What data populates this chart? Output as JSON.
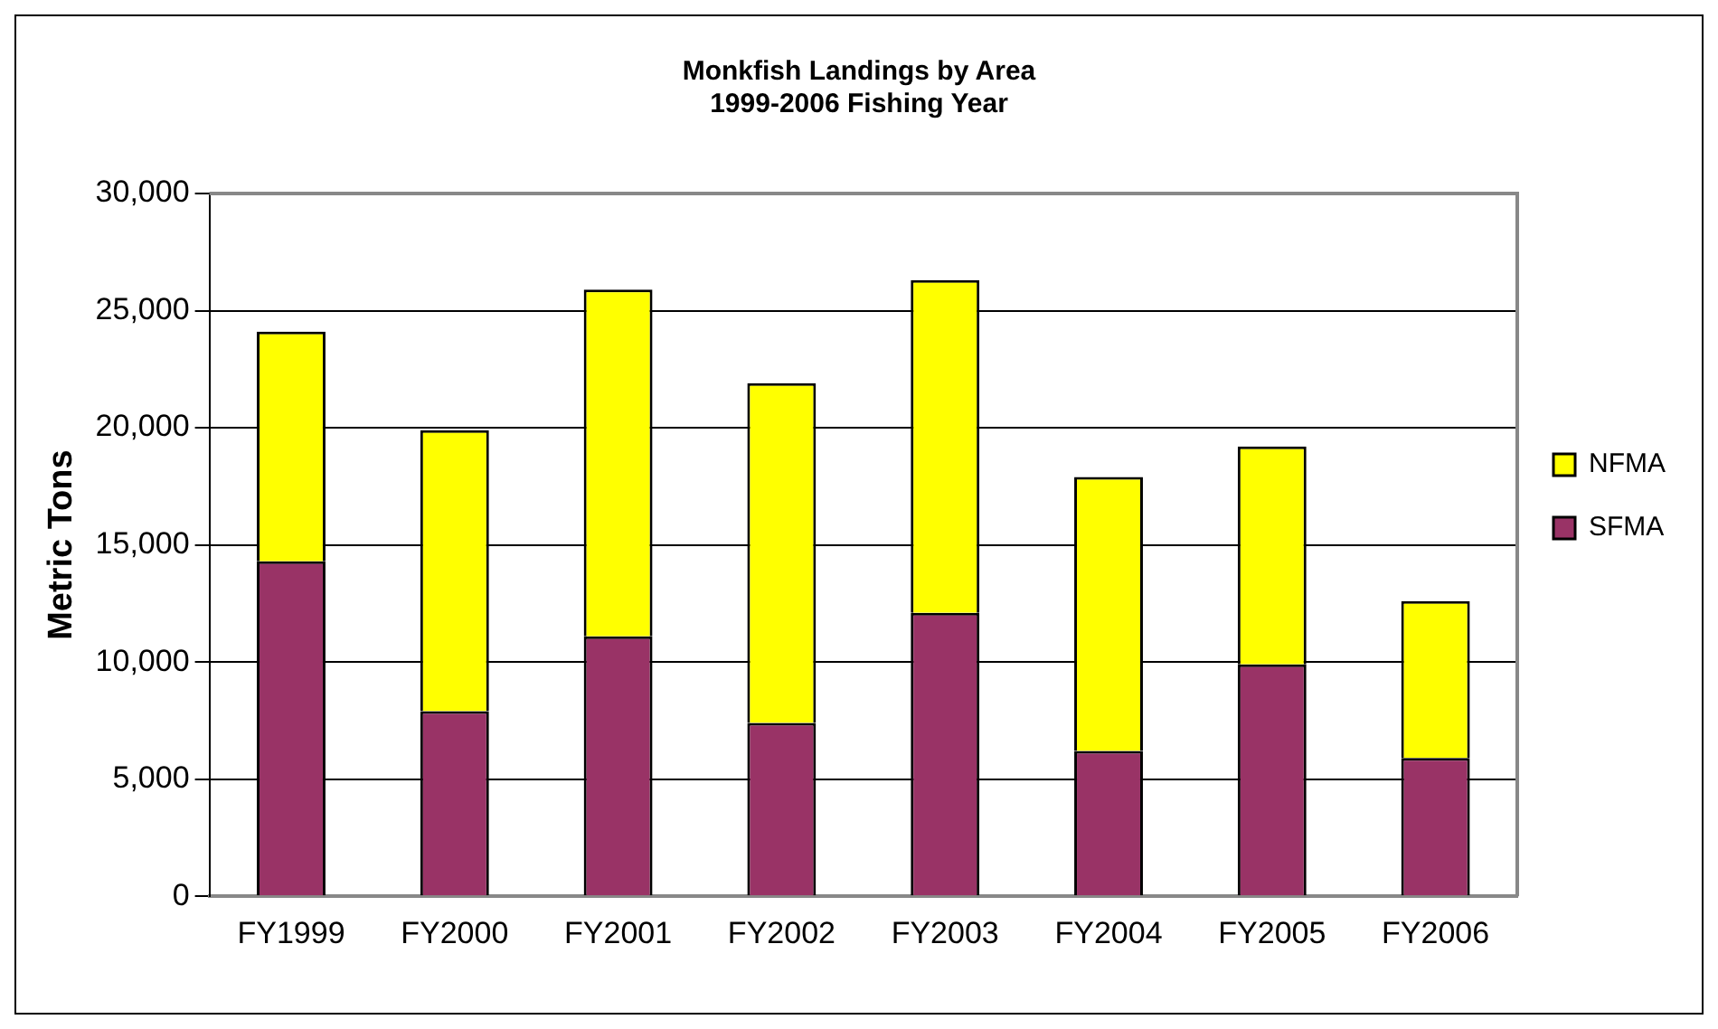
{
  "chart_data": {
    "type": "bar",
    "title": [
      "Monkfish Landings by Area",
      "1999-2006 Fishing Year"
    ],
    "ylabel": "Metric Tons",
    "categories": [
      "FY1999",
      "FY2000",
      "FY2001",
      "FY2002",
      "FY2003",
      "FY2004",
      "FY2005",
      "FY2006"
    ],
    "series": [
      {
        "name": "SFMA",
        "color": "#993366",
        "values": [
          14300,
          7900,
          11100,
          7400,
          12100,
          6200,
          9900,
          5900
        ]
      },
      {
        "name": "NFMA",
        "color": "#ffff00",
        "values": [
          9800,
          12000,
          14800,
          14500,
          14200,
          11700,
          9300,
          6700
        ]
      }
    ],
    "stacked": true,
    "ylim": [
      0,
      30000
    ],
    "yticks": [
      {
        "value": 0,
        "label": "0"
      },
      {
        "value": 5000,
        "label": "5,000"
      },
      {
        "value": 10000,
        "label": "10,000"
      },
      {
        "value": 15000,
        "label": "15,000"
      },
      {
        "value": 20000,
        "label": "20,000"
      },
      {
        "value": 25000,
        "label": "25,000"
      },
      {
        "value": 30000,
        "label": "30,000"
      }
    ],
    "grid": "y",
    "legend": "right"
  }
}
